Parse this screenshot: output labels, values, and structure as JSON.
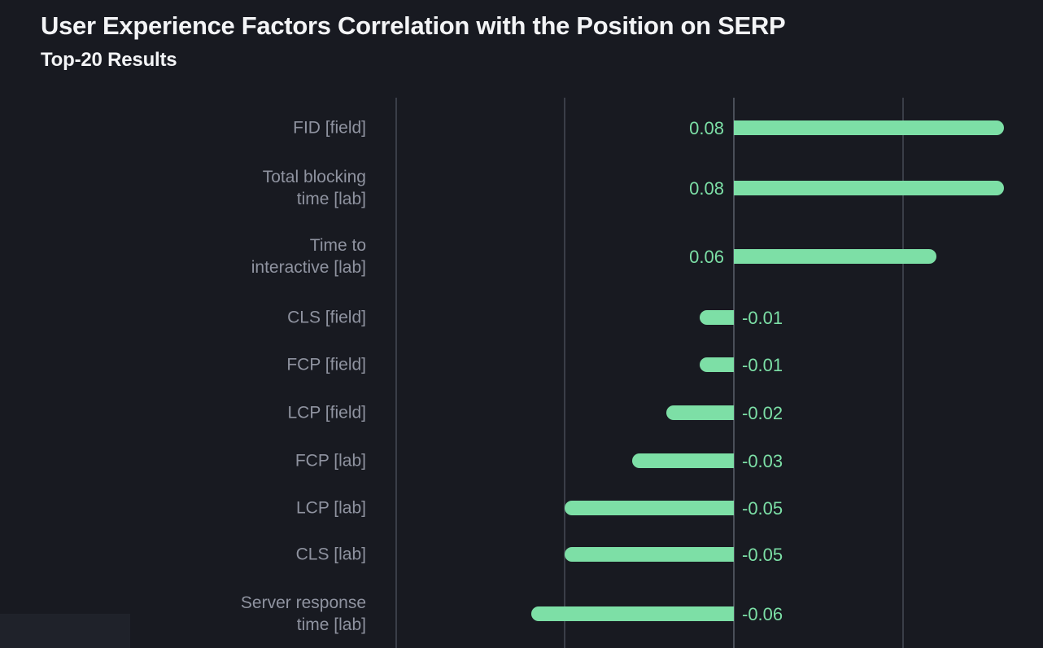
{
  "chart_data": {
    "type": "bar",
    "orientation": "horizontal",
    "title": "User Experience Factors Correlation with the Position on SERP",
    "subtitle": "Top-20 Results",
    "categories": [
      "FID [field]",
      "Total blocking time [lab]",
      "Time to interactive [lab]",
      "CLS [field]",
      "FCP [field]",
      "LCP [field]",
      "FCP [lab]",
      "LCP [lab]",
      "CLS [lab]",
      "Server response time [lab]"
    ],
    "label_lines": [
      [
        "FID [field]"
      ],
      [
        "Total blocking",
        "time [lab]"
      ],
      [
        "Time to",
        "interactive [lab]"
      ],
      [
        "CLS [field]"
      ],
      [
        "FCP [field]"
      ],
      [
        "LCP [field]"
      ],
      [
        "FCP [lab]"
      ],
      [
        "LCP [lab]"
      ],
      [
        "CLS [lab]"
      ],
      [
        "Server response",
        "time [lab]"
      ]
    ],
    "values": [
      0.08,
      0.08,
      0.06,
      -0.01,
      -0.01,
      -0.02,
      -0.03,
      -0.05,
      -0.05,
      -0.06
    ],
    "value_labels": [
      "0.08",
      "0.08",
      "0.06",
      "-0.01",
      "-0.01",
      "-0.02",
      "-0.03",
      "-0.05",
      "-0.05",
      "-0.06"
    ],
    "xlim": [
      -0.1,
      0.09
    ],
    "gridline_values": [
      -0.1,
      -0.05,
      0,
      0.05
    ],
    "grid": "vertical-lines-only",
    "legend": "none",
    "colors": {
      "background": "#181A21",
      "title": "#F3F4F6",
      "bar": "#7DDFA6",
      "value_text": "#7CDFA6",
      "category_text": "#8F93A0",
      "gridline": "#3A3E48",
      "zero_line": "#4A4F59"
    }
  }
}
